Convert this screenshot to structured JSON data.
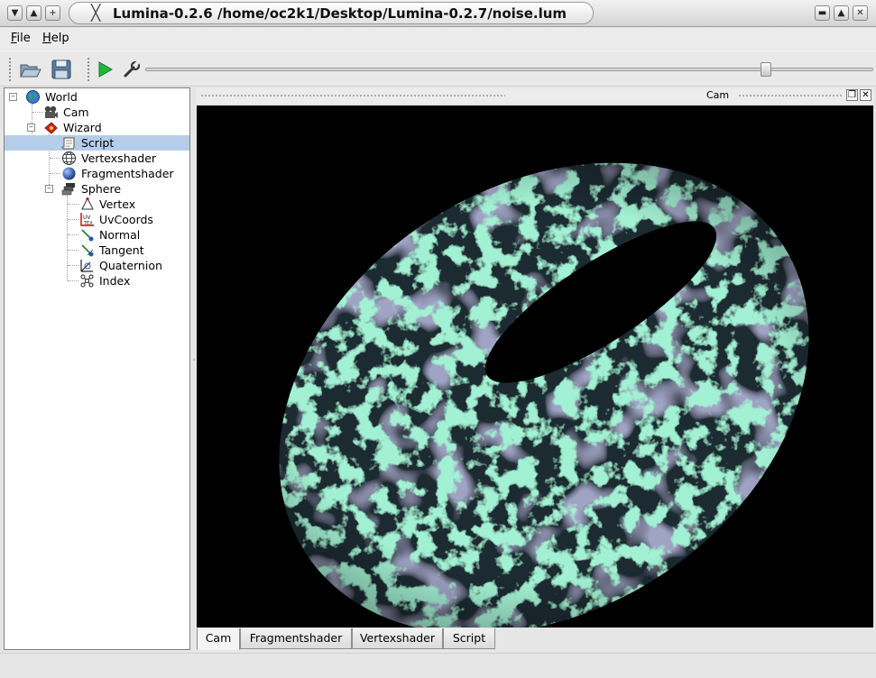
{
  "window": {
    "title": "Lumina-0.2.6 /home/oc2k1/Desktop/Lumina-0.2.7/noise.lum"
  },
  "menu": {
    "file": "File",
    "help": "Help"
  },
  "toolbar": {
    "open_icon": "folder-open-icon",
    "save_icon": "floppy-save-icon",
    "play_icon": "play-icon",
    "settings_icon": "wrench-icon",
    "slider_value_fraction": 0.853
  },
  "tree": {
    "world": "World",
    "cam": "Cam",
    "wizard": "Wizard",
    "script": "Script",
    "vertexshader": "Vertexshader",
    "fragmentshader": "Fragmentshader",
    "sphere": "Sphere",
    "vertex": "Vertex",
    "uvcoords": "UvCoords",
    "normal": "Normal",
    "tangent": "Tangent",
    "quaternion": "Quaternion",
    "index": "Index",
    "selected": "Script"
  },
  "dock": {
    "title": "Cam"
  },
  "tabs": {
    "cam": "Cam",
    "fragmentshader": "Fragmentshader",
    "vertexshader": "Vertexshader",
    "script": "Script",
    "active": "Cam"
  },
  "colors": {
    "noise_bright": "#5fe0a8",
    "noise_dark": "#1b2a33",
    "noise_purple": "#5a5f8c",
    "selection": "#b5cde8"
  }
}
